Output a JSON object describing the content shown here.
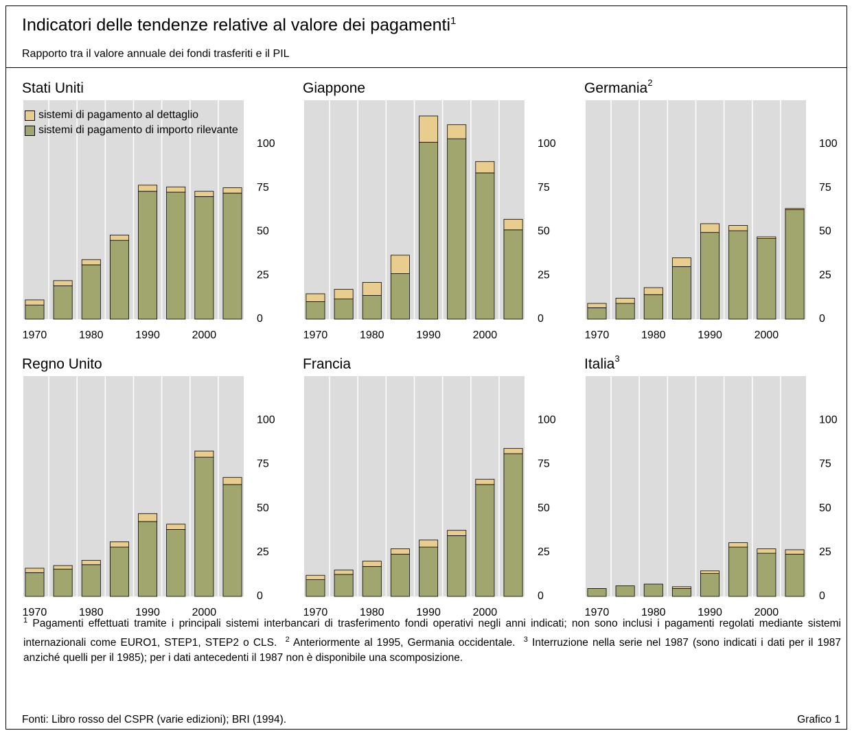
{
  "header": {
    "title": "Indicatori delle tendenze relative al valore dei pagamenti",
    "title_note": "1",
    "subtitle": "Rapporto tra il valore annuale dei fondi trasferiti e il PIL"
  },
  "chart_data": [
    {
      "type": "bar",
      "stacked": true,
      "title": "Stati Uniti",
      "legend": "upper left",
      "x": [
        1970,
        1975,
        1980,
        1985,
        1990,
        1995,
        2000,
        2005
      ],
      "series": [
        {
          "name": "sistemi di pagamento di importo rilevante",
          "color": "#a0a66e",
          "values": [
            8,
            19,
            31,
            45,
            73,
            72.5,
            70,
            72
          ]
        },
        {
          "name": "sistemi di pagamento al dettaglio",
          "color": "#e8cd8f",
          "values": [
            3,
            3,
            3,
            3,
            3.5,
            3,
            3,
            3
          ]
        }
      ],
      "xlim": [
        1968,
        2007
      ],
      "xticks": [
        1970,
        1980,
        1990,
        2000
      ],
      "ylim": [
        0,
        125
      ],
      "yticks": [
        0,
        25,
        50,
        75,
        100
      ]
    },
    {
      "type": "bar",
      "stacked": true,
      "title": "Giappone",
      "x": [
        1970,
        1975,
        1980,
        1985,
        1990,
        1995,
        2000,
        2005
      ],
      "series": [
        {
          "color": "#a0a66e",
          "values": [
            10,
            11.5,
            13.5,
            26,
            101,
            103,
            83.5,
            51
          ]
        },
        {
          "color": "#e8cd8f",
          "values": [
            4.5,
            5.5,
            7.5,
            10.5,
            15,
            8,
            6.5,
            6
          ]
        }
      ],
      "xlim": [
        1968,
        2007
      ],
      "xticks": [
        1970,
        1980,
        1990,
        2000
      ],
      "ylim": [
        0,
        125
      ],
      "yticks": [
        0,
        25,
        50,
        75,
        100
      ]
    },
    {
      "type": "bar",
      "stacked": true,
      "title": "Germania",
      "title_note": "2",
      "x": [
        1970,
        1975,
        1980,
        1985,
        1990,
        1995,
        2000,
        2005
      ],
      "series": [
        {
          "color": "#a0a66e",
          "values": [
            6.5,
            9,
            14,
            30,
            49.5,
            50.5,
            46,
            62.5
          ]
        },
        {
          "color": "#e8cd8f",
          "values": [
            2.5,
            3,
            4,
            5,
            5,
            3,
            1,
            0.7
          ]
        }
      ],
      "xlim": [
        1968,
        2007
      ],
      "xticks": [
        1970,
        1980,
        1990,
        2000
      ],
      "ylim": [
        0,
        125
      ],
      "yticks": [
        0,
        25,
        50,
        75,
        100
      ]
    },
    {
      "type": "bar",
      "stacked": true,
      "title": "Regno Unito",
      "x": [
        1970,
        1975,
        1980,
        1985,
        1990,
        1995,
        2000,
        2005
      ],
      "series": [
        {
          "color": "#a0a66e",
          "values": [
            13.5,
            15.5,
            18,
            28,
            42.5,
            38,
            79,
            63.5
          ]
        },
        {
          "color": "#e8cd8f",
          "values": [
            2.5,
            2,
            2.5,
            3,
            4.5,
            3,
            3.5,
            4
          ]
        }
      ],
      "xlim": [
        1968,
        2007
      ],
      "xticks": [
        1970,
        1980,
        1990,
        2000
      ],
      "ylim": [
        0,
        125
      ],
      "yticks": [
        0,
        25,
        50,
        75,
        100
      ]
    },
    {
      "type": "bar",
      "stacked": true,
      "title": "Francia",
      "x": [
        1970,
        1975,
        1980,
        1985,
        1990,
        1995,
        2000,
        2005
      ],
      "series": [
        {
          "color": "#a0a66e",
          "values": [
            9.5,
            12.5,
            17,
            24,
            28,
            34.5,
            63.5,
            81
          ]
        },
        {
          "color": "#e8cd8f",
          "values": [
            2.5,
            2.5,
            3,
            3,
            4,
            3,
            3,
            3
          ]
        }
      ],
      "xlim": [
        1968,
        2007
      ],
      "xticks": [
        1970,
        1980,
        1990,
        2000
      ],
      "ylim": [
        0,
        125
      ],
      "yticks": [
        0,
        25,
        50,
        75,
        100
      ]
    },
    {
      "type": "bar",
      "stacked": true,
      "title": "Italia",
      "title_note": "3",
      "x": [
        1970,
        1975,
        1980,
        1985,
        1990,
        1995,
        2000,
        2005
      ],
      "series": [
        {
          "color": "#a0a66e",
          "values": [
            4.5,
            6,
            7,
            4.5,
            13,
            28,
            24.5,
            24
          ]
        },
        {
          "color": "#e8cd8f",
          "values": [
            null,
            null,
            null,
            1,
            1.5,
            2.5,
            2.5,
            2.5
          ]
        }
      ],
      "xlim": [
        1968,
        2007
      ],
      "xticks": [
        1970,
        1980,
        1990,
        2000
      ],
      "ylim": [
        0,
        125
      ],
      "yticks": [
        0,
        25,
        50,
        75,
        100
      ]
    }
  ],
  "footnotes": [
    {
      "marker": "1",
      "text": "Pagamenti effettuati tramite i principali sistemi interbancari di trasferimento fondi operativi negli anni indicati; non sono inclusi i pagamenti regolati mediante sistemi internazionali come EURO1, STEP1, STEP2 o CLS."
    },
    {
      "marker": "2",
      "text": "Anteriormente al 1995, Germania occidentale."
    },
    {
      "marker": "3",
      "text": "Interruzione nella serie nel 1987 (sono indicati i dati per il 1987 anziché quelli per il 1985); per i dati antecedenti il 1987 non è disponibile una scomposizione."
    }
  ],
  "source": "Fonti: Libro rosso del CSPR (varie edizioni); BRI (1994).",
  "label": "Grafico 1"
}
